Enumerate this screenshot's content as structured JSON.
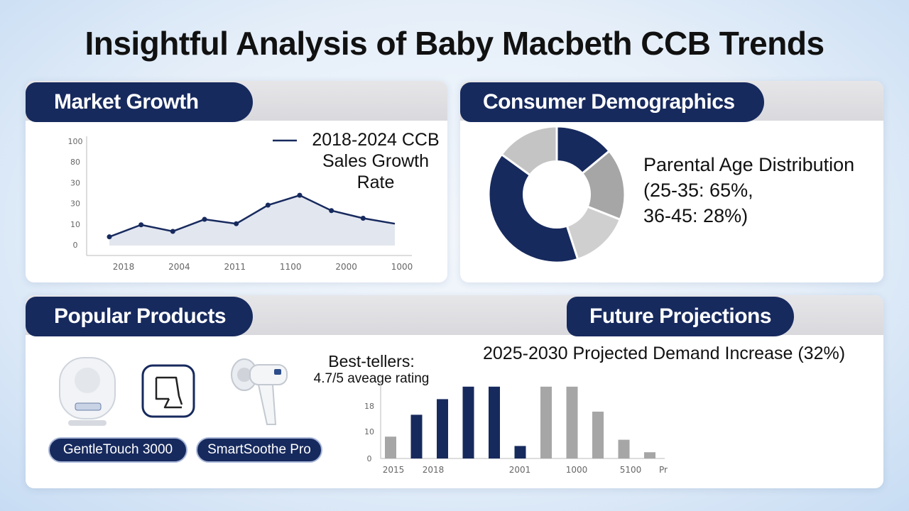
{
  "title": "Insightful Analysis of Baby Macbeth CCB Trends",
  "panels": {
    "market_growth": {
      "heading": "Market Growth",
      "legend_line1": "2018-2024 CCB",
      "legend_line2": "Sales Growth",
      "legend_line3": "Rate"
    },
    "consumer_demographics": {
      "heading": "Consumer Demographics",
      "caption_line1": "Parental Age Distribution",
      "caption_line2": "(25-35: 65%,",
      "caption_line3": "36-45: 28%)"
    },
    "popular_products": {
      "heading": "Popular Products",
      "bestsellers_line1": "Best-tellers:",
      "bestsellers_line2": "4.7/5 aveage rating",
      "products": [
        "GentleTouch 3000",
        "SmartSoothe Pro"
      ]
    },
    "future_projections": {
      "heading": "Future Projections",
      "caption": "2025-2030 Projected Demand Increase (32%)"
    }
  },
  "colors": {
    "navy": "#172a5e",
    "gray": "#a6a6a6",
    "light_gray": "#c8c8c8"
  },
  "chart_data": [
    {
      "type": "line",
      "series": [
        {
          "name": "2018-2024 CCB Sales Growth Rate",
          "values": [
            8,
            19,
            13,
            24,
            20,
            37,
            46,
            32,
            25,
            20
          ]
        }
      ],
      "yticks": [
        "0",
        "10",
        "30",
        "30",
        "80",
        "100"
      ],
      "xticks": [
        "2018",
        "2004",
        "2011",
        "1100",
        "2000",
        "1000"
      ],
      "ylim": [
        0,
        100
      ]
    },
    {
      "type": "pie",
      "slices": [
        {
          "value": 14,
          "color": "#172a5e"
        },
        {
          "value": 17,
          "color": "#a6a6a6"
        },
        {
          "value": 14,
          "color": "#cfcfcf"
        },
        {
          "value": 40,
          "color": "#172a5e"
        },
        {
          "value": 15,
          "color": "#c4c4c4"
        }
      ]
    },
    {
      "type": "bar",
      "values": [
        7,
        14,
        19,
        23,
        23,
        4,
        23,
        23,
        15,
        6,
        2
      ],
      "colors": [
        "gray",
        "navy",
        "navy",
        "navy",
        "navy",
        "navy",
        "gray",
        "gray",
        "gray",
        "gray",
        "gray"
      ],
      "yticks": [
        "0",
        "10",
        "18"
      ],
      "xticks": [
        "2015",
        "2018",
        "2001",
        "1000",
        "5100",
        "Pr"
      ],
      "ylim": [
        0,
        25
      ]
    }
  ]
}
